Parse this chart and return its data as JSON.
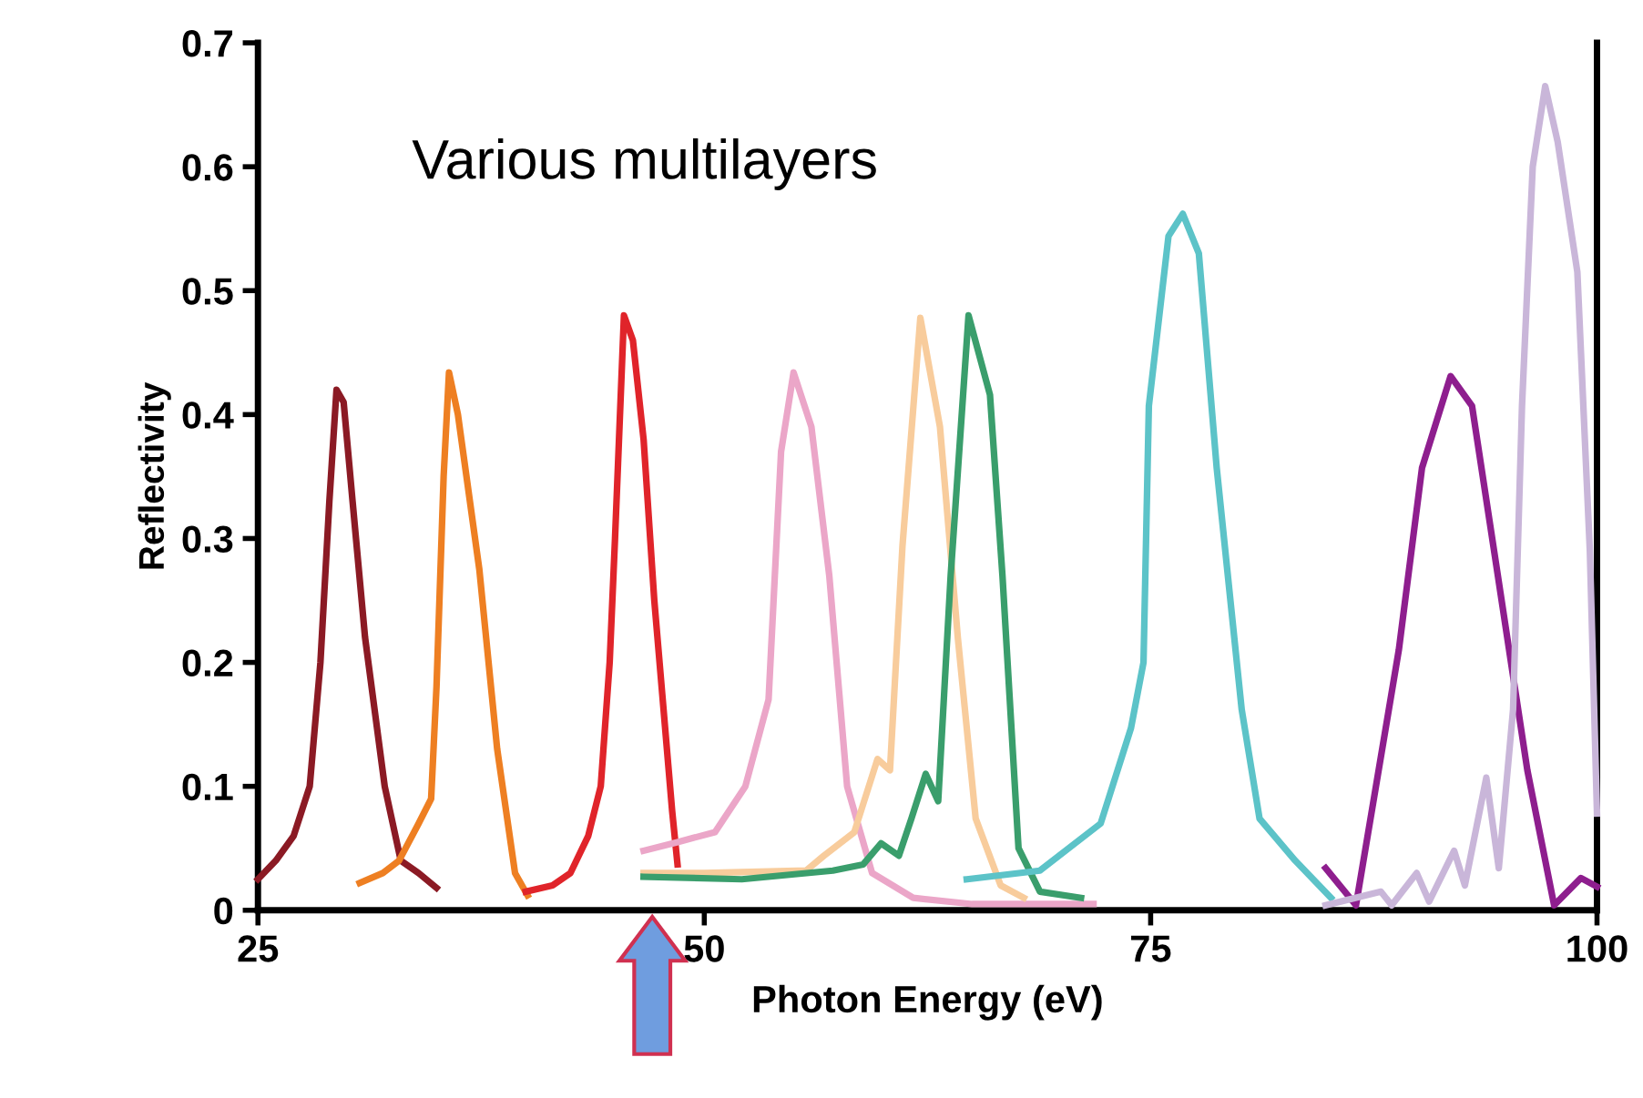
{
  "chart_data": {
    "type": "line",
    "xlabel": "Photon Energy (eV)",
    "ylabel": "Reflectivity",
    "annotations": [
      "Various multilayers"
    ],
    "xlim": [
      25,
      100
    ],
    "xticks": [
      25,
      50,
      75,
      100
    ],
    "ylim": [
      0,
      0.7
    ],
    "yticks": [
      0,
      0.1,
      0.2,
      0.3,
      0.4,
      0.5,
      0.6,
      0.7
    ],
    "grid": false,
    "legend": false,
    "marker": "none",
    "line_style": "solid",
    "series": [
      {
        "color": "#8b1a24",
        "x": [
          25,
          26,
          27,
          27.9,
          28.5,
          29,
          29.4,
          29.8,
          30.3,
          31,
          32.1,
          33,
          34,
          35
        ],
        "values": [
          0.025,
          0.04,
          0.06,
          0.1,
          0.2,
          0.33,
          0.42,
          0.41,
          0.33,
          0.22,
          0.1,
          0.04,
          0.03,
          0.018
        ]
      },
      {
        "color": "#ee7f22",
        "x": [
          30.7,
          32,
          32.9,
          34,
          34.7,
          35,
          35.4,
          35.7,
          36.2,
          37.4,
          38.4,
          39.4,
          40.1
        ],
        "values": [
          0.022,
          0.03,
          0.04,
          0.07,
          0.09,
          0.18,
          0.35,
          0.434,
          0.4,
          0.275,
          0.13,
          0.03,
          0.012
        ]
      },
      {
        "color": "#e0242a",
        "x": [
          40,
          41.5,
          42.5,
          43.5,
          44.2,
          44.7,
          45,
          45.5,
          46,
          46.6,
          47.2,
          48.2,
          48.5
        ],
        "values": [
          0.015,
          0.02,
          0.03,
          0.06,
          0.1,
          0.2,
          0.3,
          0.48,
          0.46,
          0.38,
          0.25,
          0.08,
          0.037
        ]
      },
      {
        "color": "#eba6c8",
        "x": [
          46.6,
          48.5,
          50.6,
          52.3,
          53.6,
          54.3,
          55,
          56,
          57,
          58,
          59.4,
          61.7,
          65,
          68,
          71.8
        ],
        "values": [
          0.048,
          0.055,
          0.063,
          0.1,
          0.17,
          0.37,
          0.434,
          0.39,
          0.27,
          0.1,
          0.03,
          0.01,
          0.005,
          0.005,
          0.005
        ]
      },
      {
        "color": "#f8cc9c",
        "x": [
          46.6,
          50,
          55.7,
          56.7,
          58.4,
          59.7,
          60.4,
          61.1,
          62.1,
          63.2,
          64.2,
          65.2,
          66.6,
          67.9
        ],
        "values": [
          0.03,
          0.03,
          0.032,
          0.044,
          0.063,
          0.122,
          0.113,
          0.294,
          0.478,
          0.39,
          0.22,
          0.074,
          0.02,
          0.01
        ]
      },
      {
        "color": "#3a9e6c",
        "x": [
          46.6,
          52.1,
          57.2,
          58.9,
          59.9,
          60.9,
          61.6,
          62.4,
          63.1,
          63.8,
          64.8,
          66,
          66.7,
          67.6,
          68.8,
          71.1
        ],
        "values": [
          0.027,
          0.025,
          0.032,
          0.037,
          0.054,
          0.044,
          0.074,
          0.11,
          0.088,
          0.27,
          0.48,
          0.416,
          0.27,
          0.05,
          0.015,
          0.01
        ]
      },
      {
        "color": "#5cc3c8",
        "x": [
          64.7,
          68.8,
          72.2,
          73.9,
          74.6,
          74.9,
          76,
          76.8,
          77.7,
          78.7,
          80.1,
          81.1,
          83.1,
          85.1
        ],
        "values": [
          0.025,
          0.032,
          0.07,
          0.147,
          0.2,
          0.407,
          0.544,
          0.562,
          0.53,
          0.357,
          0.162,
          0.074,
          0.04,
          0.01
        ]
      },
      {
        "color": "#8e1e8e",
        "x": [
          84.8,
          86.5,
          88.9,
          90.2,
          91.8,
          93,
          94.3,
          96.1,
          97.6,
          99.1,
          100
        ],
        "values": [
          0.034,
          0.004,
          0.21,
          0.357,
          0.431,
          0.407,
          0.284,
          0.113,
          0.004,
          0.026,
          0.019
        ]
      },
      {
        "color": "#c9b6d9",
        "x": [
          84.8,
          87.9,
          88.5,
          89.9,
          90.6,
          92,
          92.6,
          93.8,
          94.5,
          95.3,
          95.8,
          96.4,
          97.1,
          97.8,
          98.9,
          99.6,
          100
        ],
        "values": [
          0.004,
          0.015,
          0.004,
          0.03,
          0.007,
          0.048,
          0.02,
          0.107,
          0.034,
          0.162,
          0.407,
          0.6,
          0.665,
          0.62,
          0.515,
          0.29,
          0.078
        ]
      }
    ]
  }
}
